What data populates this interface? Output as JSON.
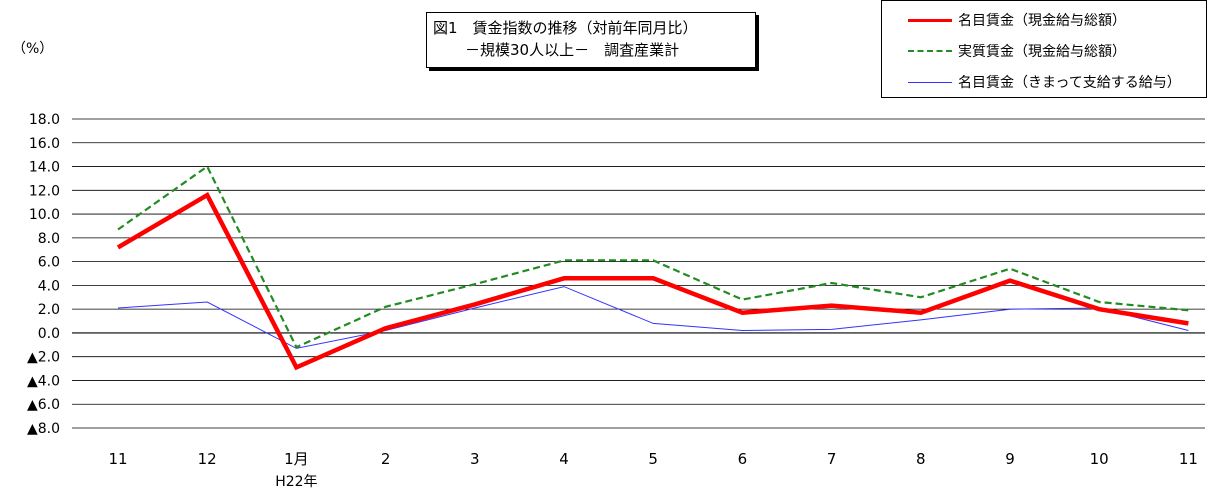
{
  "title": {
    "line1": "図1　賃金指数の推移（対前年同月比）",
    "line2": "－規模30人以上－　調査産業計"
  },
  "unit_label": "（%）",
  "year_label": "H22年",
  "chart_data": {
    "type": "line",
    "categories": [
      "11",
      "12",
      "1月",
      "2",
      "3",
      "4",
      "5",
      "6",
      "7",
      "8",
      "9",
      "10",
      "11"
    ],
    "ylim": [
      -8.0,
      18.0
    ],
    "yticks": [
      18.0,
      16.0,
      14.0,
      12.0,
      10.0,
      8.0,
      6.0,
      4.0,
      2.0,
      0.0,
      -2.0,
      -4.0,
      -6.0,
      -8.0
    ],
    "ytick_labels": [
      "18.0",
      "16.0",
      "14.0",
      "12.0",
      "10.0",
      "8.0",
      "6.0",
      "4.0",
      "2.0",
      "0.0",
      "▲2.0",
      "▲4.0",
      "▲6.0",
      "▲8.0"
    ],
    "grid": true,
    "legend_position": "top-right",
    "series": [
      {
        "name": "名目賃金（現金給与総額）",
        "color": "#ff0000",
        "style": "solid-thick",
        "values": [
          7.2,
          11.6,
          -2.9,
          0.4,
          2.4,
          4.6,
          4.6,
          1.7,
          2.3,
          1.7,
          4.4,
          2.0,
          0.8
        ]
      },
      {
        "name": "実質賃金（現金給与総額）",
        "color": "#228b22",
        "style": "dashed",
        "values": [
          8.7,
          14.0,
          -1.2,
          2.2,
          4.1,
          6.1,
          6.1,
          2.8,
          4.2,
          3.0,
          5.4,
          2.6,
          1.9
        ]
      },
      {
        "name": "名目賃金（きまって支給する給与）",
        "color": "#3333ff",
        "style": "solid-thin",
        "values": [
          2.1,
          2.6,
          -1.3,
          0.2,
          2.1,
          3.9,
          0.8,
          0.2,
          0.3,
          1.1,
          2.0,
          2.1,
          0.2
        ]
      }
    ]
  }
}
